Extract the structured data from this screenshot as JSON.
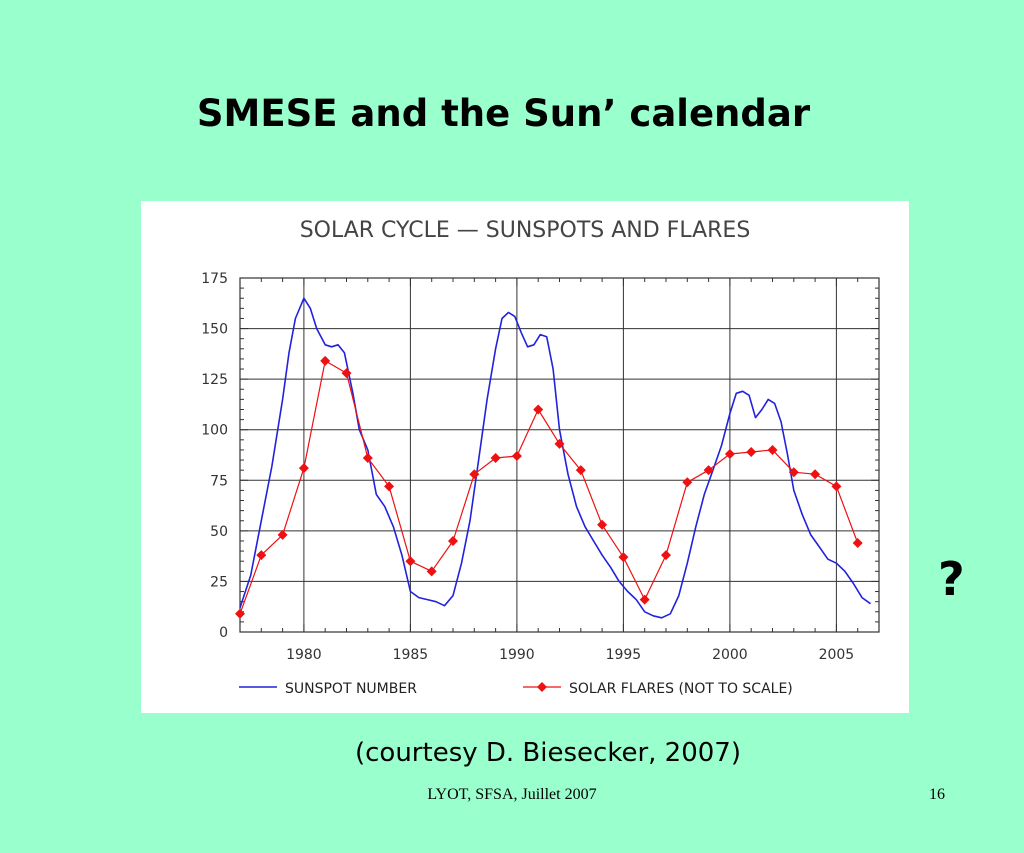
{
  "slide": {
    "title": "SMESE and the Sun’ calendar",
    "question_mark": "?",
    "courtesy": "(courtesy D. Biesecker, 2007)",
    "footer": "LYOT, SFSA, Juillet 2007",
    "page_number": "16"
  },
  "chart_data": {
    "type": "line",
    "title": "SOLAR CYCLE — SUNSPOTS AND FLARES",
    "xlabel": "",
    "ylabel": "",
    "xlim": [
      1977,
      2007
    ],
    "ylim": [
      0,
      175
    ],
    "x_ticks": [
      1980,
      1985,
      1990,
      1995,
      2000,
      2005
    ],
    "y_ticks": [
      0,
      25,
      50,
      75,
      100,
      125,
      150,
      175
    ],
    "grid": true,
    "legend_position": "bottom",
    "series": [
      {
        "name": "SUNSPOT NUMBER",
        "color": "#2222dd",
        "marker": "none",
        "x": [
          1977.0,
          1977.5,
          1978.0,
          1978.5,
          1979.0,
          1979.3,
          1979.6,
          1980.0,
          1980.3,
          1980.6,
          1981.0,
          1981.3,
          1981.6,
          1981.9,
          1982.3,
          1982.6,
          1983.0,
          1983.4,
          1983.8,
          1984.2,
          1984.6,
          1985.0,
          1985.4,
          1985.8,
          1986.2,
          1986.6,
          1987.0,
          1987.4,
          1987.8,
          1988.2,
          1988.6,
          1989.0,
          1989.3,
          1989.6,
          1989.9,
          1990.2,
          1990.5,
          1990.8,
          1991.1,
          1991.4,
          1991.7,
          1992.0,
          1992.4,
          1992.8,
          1993.2,
          1993.6,
          1994.0,
          1994.4,
          1994.8,
          1995.2,
          1995.6,
          1996.0,
          1996.4,
          1996.8,
          1997.2,
          1997.6,
          1998.0,
          1998.4,
          1998.8,
          1999.2,
          1999.6,
          2000.0,
          2000.3,
          2000.6,
          2000.9,
          2001.2,
          2001.5,
          2001.8,
          2002.1,
          2002.4,
          2002.7,
          2003.0,
          2003.4,
          2003.8,
          2004.2,
          2004.6,
          2005.0,
          2005.4,
          2005.8,
          2006.2,
          2006.6
        ],
        "values": [
          12,
          28,
          55,
          82,
          115,
          138,
          155,
          165,
          160,
          150,
          142,
          141,
          142,
          138,
          118,
          100,
          90,
          68,
          62,
          52,
          38,
          20,
          17,
          16,
          15,
          13,
          18,
          34,
          55,
          85,
          115,
          140,
          155,
          158,
          156,
          148,
          141,
          142,
          147,
          146,
          130,
          100,
          78,
          62,
          52,
          45,
          38,
          32,
          25,
          20,
          16,
          10,
          8,
          7,
          9,
          18,
          34,
          52,
          68,
          80,
          92,
          108,
          118,
          119,
          117,
          106,
          110,
          115,
          113,
          104,
          88,
          70,
          58,
          48,
          42,
          36,
          34,
          30,
          24,
          17,
          14
        ]
      },
      {
        "name": "SOLAR FLARES (NOT TO SCALE)",
        "color": "#ee1111",
        "marker": "diamond",
        "x": [
          1977,
          1978,
          1979,
          1980,
          1981,
          1982,
          1983,
          1984,
          1985,
          1986,
          1987,
          1988,
          1989,
          1990,
          1991,
          1992,
          1993,
          1994,
          1995,
          1996,
          1997,
          1998,
          1999,
          2000,
          2001,
          2002,
          2003,
          2004,
          2005,
          2006
        ],
        "values": [
          9,
          38,
          48,
          81,
          134,
          128,
          86,
          72,
          35,
          30,
          45,
          78,
          86,
          87,
          110,
          93,
          80,
          53,
          37,
          16,
          38,
          74,
          80,
          88,
          89,
          90,
          79,
          78,
          72,
          44
        ]
      }
    ]
  }
}
